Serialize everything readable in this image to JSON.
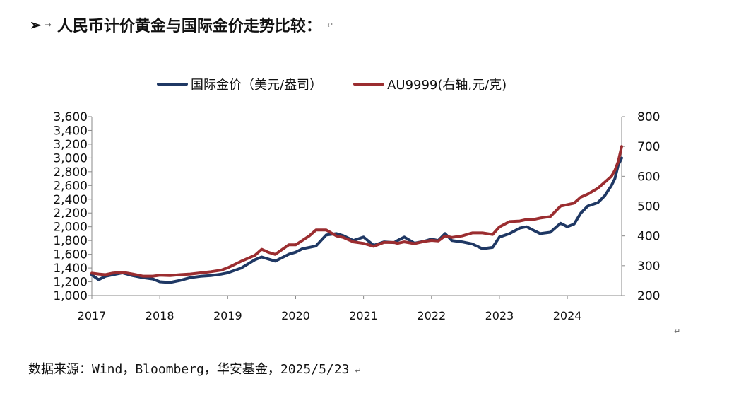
{
  "heading": {
    "bullet": "➢",
    "tab_arrow": "→",
    "text": "人民币计价黄金与国际金价走势比较：",
    "pilcrow": "↵"
  },
  "source": {
    "text": "数据来源：Wind，Bloomberg，华安基金，2025/5/23",
    "pilcrow": "↵"
  },
  "end_mark": "↵",
  "chart_data": {
    "type": "line",
    "title": "",
    "x_ticks": [
      "2017",
      "2018",
      "2019",
      "2020",
      "2021",
      "2022",
      "2023",
      "2024"
    ],
    "xlim": [
      2017.0,
      2024.8
    ],
    "left_axis": {
      "ticks": [
        "1,000",
        "1,200",
        "1,400",
        "1,600",
        "1,800",
        "2,000",
        "2,200",
        "2,400",
        "2,600",
        "2,800",
        "3,000",
        "3,200",
        "3,400",
        "3,600"
      ],
      "ylim": [
        1000,
        3600
      ]
    },
    "right_axis": {
      "ticks": [
        "200",
        "300",
        "400",
        "500",
        "600",
        "700",
        "800"
      ],
      "ylim": [
        200,
        800
      ]
    },
    "grid": false,
    "legend_position": "top",
    "series": [
      {
        "name": "国际金价（美元/盎司）",
        "axis": "left",
        "color": "#1f3864",
        "x": [
          2017.0,
          2017.1,
          2017.2,
          2017.3,
          2017.45,
          2017.6,
          2017.75,
          2017.9,
          2018.0,
          2018.15,
          2018.3,
          2018.45,
          2018.6,
          2018.75,
          2018.9,
          2019.0,
          2019.2,
          2019.4,
          2019.5,
          2019.6,
          2019.7,
          2019.9,
          2020.0,
          2020.1,
          2020.2,
          2020.3,
          2020.45,
          2020.6,
          2020.7,
          2020.85,
          2021.0,
          2021.15,
          2021.3,
          2021.45,
          2021.5,
          2021.6,
          2021.75,
          2021.9,
          2022.0,
          2022.1,
          2022.2,
          2022.3,
          2022.45,
          2022.6,
          2022.75,
          2022.9,
          2023.0,
          2023.15,
          2023.3,
          2023.4,
          2023.5,
          2023.6,
          2023.75,
          2023.9,
          2024.0,
          2024.1,
          2024.2,
          2024.3,
          2024.45,
          2024.55,
          2024.65,
          2024.7,
          2024.75,
          2024.8
        ],
        "y": [
          1300,
          1230,
          1280,
          1300,
          1330,
          1290,
          1260,
          1240,
          1200,
          1190,
          1220,
          1260,
          1280,
          1290,
          1310,
          1330,
          1400,
          1520,
          1560,
          1530,
          1500,
          1600,
          1630,
          1680,
          1700,
          1720,
          1880,
          1900,
          1870,
          1800,
          1850,
          1730,
          1780,
          1770,
          1800,
          1850,
          1760,
          1790,
          1820,
          1800,
          1900,
          1800,
          1780,
          1750,
          1680,
          1700,
          1850,
          1900,
          1980,
          2000,
          1950,
          1900,
          1920,
          2050,
          2000,
          2040,
          2200,
          2300,
          2350,
          2450,
          2600,
          2700,
          2900,
          3000
        ]
      },
      {
        "name": "AU9999(右轴,元/克)",
        "axis": "right",
        "color": "#9b2d30",
        "x": [
          2017.0,
          2017.1,
          2017.2,
          2017.3,
          2017.45,
          2017.6,
          2017.75,
          2017.9,
          2018.0,
          2018.15,
          2018.3,
          2018.45,
          2018.6,
          2018.75,
          2018.9,
          2019.0,
          2019.2,
          2019.4,
          2019.5,
          2019.6,
          2019.7,
          2019.9,
          2020.0,
          2020.1,
          2020.2,
          2020.3,
          2020.45,
          2020.6,
          2020.7,
          2020.85,
          2021.0,
          2021.15,
          2021.3,
          2021.45,
          2021.5,
          2021.6,
          2021.75,
          2021.9,
          2022.0,
          2022.1,
          2022.2,
          2022.3,
          2022.45,
          2022.6,
          2022.75,
          2022.9,
          2023.0,
          2023.15,
          2023.3,
          2023.4,
          2023.5,
          2023.6,
          2023.75,
          2023.9,
          2024.0,
          2024.1,
          2024.2,
          2024.3,
          2024.45,
          2024.55,
          2024.65,
          2024.7,
          2024.75,
          2024.8
        ],
        "y": [
          275,
          272,
          270,
          275,
          278,
          272,
          265,
          265,
          268,
          267,
          270,
          272,
          276,
          280,
          285,
          293,
          315,
          335,
          355,
          345,
          338,
          370,
          370,
          385,
          400,
          420,
          420,
          400,
          395,
          380,
          375,
          365,
          378,
          378,
          375,
          380,
          374,
          382,
          385,
          383,
          400,
          395,
          400,
          410,
          410,
          405,
          430,
          448,
          450,
          455,
          455,
          460,
          465,
          500,
          505,
          510,
          530,
          540,
          560,
          580,
          600,
          620,
          650,
          700
        ]
      }
    ]
  }
}
